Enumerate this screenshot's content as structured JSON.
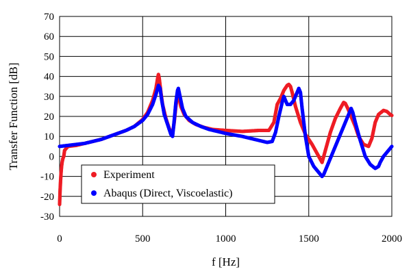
{
  "chart_data": {
    "type": "scatter",
    "title": "",
    "xlabel": "f [Hz]",
    "ylabel": "Transfer Function [dB]",
    "xlim": [
      0,
      2000
    ],
    "ylim": [
      -30,
      70
    ],
    "xticks": [
      0,
      500,
      1000,
      1500,
      2000
    ],
    "yticks": [
      -30,
      -20,
      -10,
      0,
      10,
      20,
      30,
      40,
      50,
      60,
      70
    ],
    "xtick_labels": [
      "0",
      "500",
      "1000",
      "1500",
      "2000"
    ],
    "ytick_labels": [
      "-30",
      "-20",
      "-10",
      "0",
      "10",
      "20",
      "30",
      "40",
      "50",
      "60",
      "70"
    ],
    "grid": true,
    "legend_position": "lower-left",
    "series": [
      {
        "name": "Experiment",
        "color": "#ee1c24",
        "x": [
          0,
          3,
          6,
          9,
          12,
          15,
          20,
          25,
          30,
          50,
          100,
          150,
          200,
          250,
          300,
          350,
          400,
          450,
          500,
          530,
          560,
          580,
          590,
          595,
          600,
          610,
          620,
          640,
          660,
          680,
          690,
          700,
          710,
          720,
          730,
          750,
          780,
          820,
          870,
          920,
          1000,
          1100,
          1200,
          1260,
          1290,
          1310,
          1330,
          1350,
          1370,
          1380,
          1390,
          1400,
          1420,
          1450,
          1480,
          1520,
          1560,
          1580,
          1600,
          1630,
          1660,
          1690,
          1710,
          1720,
          1735,
          1750,
          1760,
          1780,
          1800,
          1830,
          1860,
          1880,
          1900,
          1920,
          1950,
          1970,
          1990,
          2000
        ],
        "y": [
          -24,
          -17,
          -12,
          -8,
          -5,
          -3,
          -1,
          0,
          3,
          5,
          5.5,
          6.5,
          7.5,
          8.5,
          10,
          11.5,
          13,
          15,
          18.5,
          22,
          28,
          34,
          39,
          41,
          39,
          32,
          26,
          19,
          14,
          11,
          17,
          25,
          31,
          29,
          25,
          21,
          18,
          16,
          14.5,
          13.5,
          13,
          12.5,
          13,
          13,
          17,
          26,
          29,
          33,
          35.5,
          36,
          35,
          32,
          25,
          17,
          11,
          6,
          0,
          -3,
          3,
          12,
          19,
          24,
          27,
          26.5,
          24,
          21,
          19,
          15,
          10,
          6,
          5,
          9,
          17,
          21,
          23,
          22.5,
          21,
          20.5
        ]
      },
      {
        "name": "Abaqus (Direct, Viscoelastic)",
        "color": "#0000ff",
        "x": [
          0,
          50,
          100,
          150,
          200,
          250,
          300,
          350,
          400,
          450,
          500,
          530,
          560,
          580,
          595,
          605,
          615,
          630,
          650,
          670,
          680,
          690,
          700,
          710,
          715,
          725,
          740,
          760,
          800,
          850,
          900,
          1000,
          1100,
          1200,
          1250,
          1280,
          1300,
          1320,
          1340,
          1350,
          1360,
          1370,
          1390,
          1410,
          1430,
          1440,
          1450,
          1460,
          1480,
          1500,
          1530,
          1560,
          1580,
          1590,
          1600,
          1620,
          1650,
          1680,
          1710,
          1740,
          1755,
          1765,
          1780,
          1810,
          1840,
          1870,
          1900,
          1920,
          1930,
          1950,
          1970,
          1990,
          2000
        ],
        "y": [
          5,
          5.5,
          6,
          6.5,
          7.5,
          8.5,
          10,
          11.5,
          13,
          15,
          18,
          21,
          26,
          31,
          35.5,
          34,
          28,
          21,
          16,
          11,
          10,
          18,
          27,
          33,
          34,
          30,
          24,
          20,
          17,
          15,
          13.5,
          11.5,
          10,
          8,
          7,
          7.5,
          12,
          20,
          27,
          30,
          28,
          26,
          26,
          28,
          32,
          34,
          32,
          24,
          10,
          0,
          -5,
          -8,
          -10,
          -9,
          -7,
          -3,
          3,
          9,
          15,
          21,
          24,
          22,
          17,
          8,
          0,
          -4,
          -6,
          -5,
          -3,
          0,
          2,
          4,
          5
        ]
      }
    ]
  }
}
